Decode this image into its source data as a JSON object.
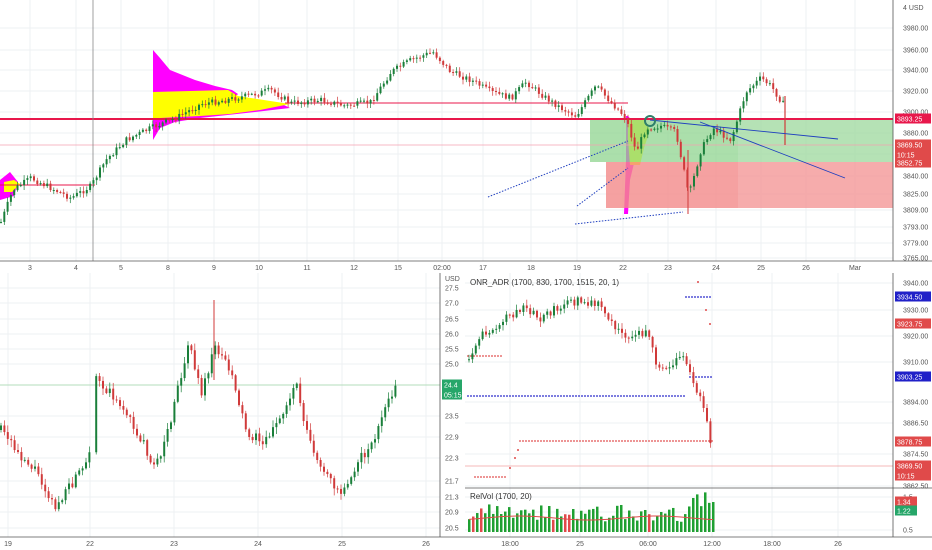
{
  "colors": {
    "up": "#26a69a",
    "up_bar": "#1a7f3a",
    "down": "#d03a3a",
    "grid": "#eef0f3",
    "profile_magenta": "#ff00ff",
    "profile_yellow": "#ffff00",
    "zone_green": "#8fd48f",
    "zone_red": "#f28a8a",
    "line_red": "#e8174b",
    "line_blue": "#1f3fbf"
  },
  "top_panel": {
    "currency": "4 USD",
    "y_ticks": [
      "3980.00",
      "3960.00",
      "3940.00",
      "3920.00",
      "3900.00",
      "3880.00",
      "3860.00",
      "3840.00",
      "3825.00",
      "3809.00",
      "3793.00",
      "3779.00",
      "3765.00"
    ],
    "x_ticks": [
      "3",
      "4",
      "5",
      "8",
      "9",
      "10",
      "11",
      "12",
      "15",
      "02:00",
      "17",
      "18",
      "19",
      "22",
      "23",
      "24",
      "25",
      "26",
      "Mar"
    ],
    "price_tags": [
      {
        "text": "3893.25",
        "color": "#e8174b"
      },
      {
        "text": "3869.50",
        "color": "#e04a4a"
      },
      {
        "text": "10:15",
        "color": "#e04a4a"
      },
      {
        "text": "3852.75",
        "color": "#e04a4a"
      }
    ]
  },
  "bottom_left": {
    "x_ticks": [
      "19",
      "22",
      "23",
      "24",
      "25",
      "26"
    ],
    "y_ticks": [
      "27.5",
      "27.0",
      "26.5",
      "26.0",
      "25.5",
      "25.0",
      "24.4",
      "23.5",
      "22.9",
      "22.3",
      "21.7",
      "21.3",
      "20.9",
      "20.5"
    ],
    "currency": "USD",
    "tags": [
      {
        "text": "24.4",
        "color": "#26a669"
      },
      {
        "text": "05:15",
        "color": "#26a669"
      }
    ]
  },
  "bottom_right": {
    "indicator_title": "ONR_ADR (1700, 830, 1700, 1515, 20, 1)",
    "relvol_title": "RelVol (1700, 20)",
    "x_ticks": [
      "18:00",
      "25",
      "06:00",
      "12:00",
      "18:00",
      "26"
    ],
    "y_ticks": [
      "3940.00",
      "3930.00",
      "3920.00",
      "3910.00",
      "3894.00",
      "3886.50",
      "3874.50",
      "3862.50",
      "1.5",
      "1.0",
      "0.5"
    ],
    "price_tags": [
      {
        "text": "3934.50",
        "color": "#2020c8"
      },
      {
        "text": "3923.75",
        "color": "#e04a4a"
      },
      {
        "text": "3903.25",
        "color": "#2020c8"
      },
      {
        "text": "3878.75",
        "color": "#e04a4a"
      },
      {
        "text": "3869.50",
        "color": "#e04a4a"
      },
      {
        "text": "10:15",
        "color": "#e04a4a"
      }
    ],
    "relvol_tags": [
      {
        "text": "1.34",
        "color": "#e04a4a"
      },
      {
        "text": "1.22",
        "color": "#26a669"
      }
    ]
  }
}
